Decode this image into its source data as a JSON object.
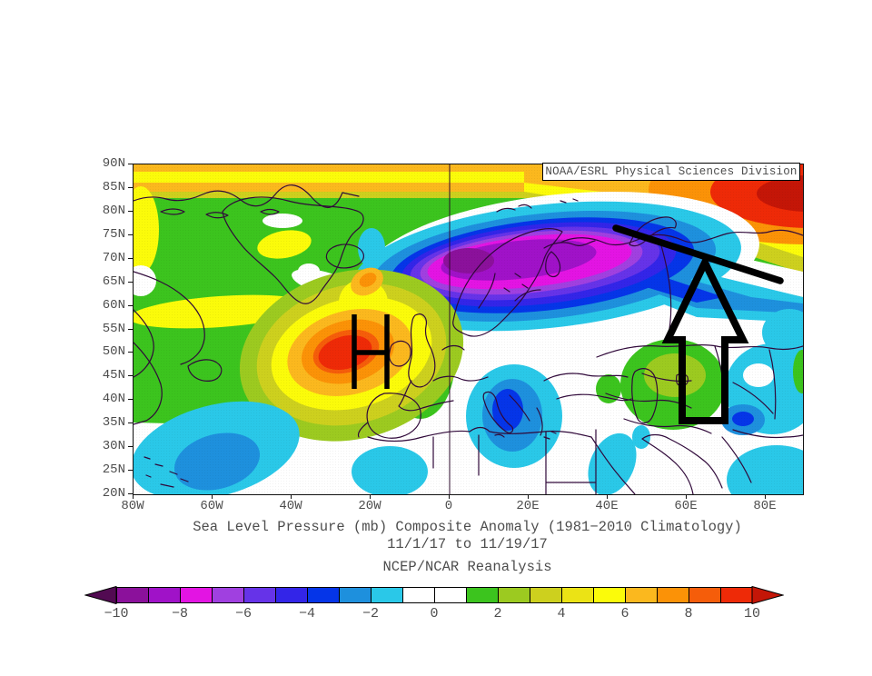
{
  "header": {
    "credit": "NOAA/ESRL Physical Sciences Division"
  },
  "titles": {
    "line1": "Sea Level Pressure (mb) Composite Anomaly (1981−2010 Climatology)",
    "line2": "11/1/17  to 11/19/17",
    "line3": "NCEP/NCAR Reanalysis"
  },
  "axes": {
    "lat_labels": [
      "90N",
      "85N",
      "80N",
      "75N",
      "70N",
      "65N",
      "60N",
      "55N",
      "50N",
      "45N",
      "40N",
      "35N",
      "30N",
      "25N",
      "20N"
    ],
    "lon_labels": [
      "80W",
      "60W",
      "40W",
      "20W",
      "0",
      "20E",
      "40E",
      "60E",
      "80E"
    ]
  },
  "colorbar": {
    "tick_labels": [
      "−10",
      "−8",
      "−6",
      "−4",
      "−2",
      "0",
      "2",
      "4",
      "6",
      "8",
      "10"
    ],
    "segment_colors": [
      "#8b119b",
      "#a012c8",
      "#e314e3",
      "#a040e0",
      "#6633e8",
      "#3325e8",
      "#0535e8",
      "#1e90dd",
      "#2ac8e8",
      "#ffffff",
      "#ffffff",
      "#3cc41e",
      "#9cca20",
      "#cdd01e",
      "#ebe315",
      "#fbfb0a",
      "#fbb81e",
      "#fb9207",
      "#f55d0a",
      "#ee2a07"
    ],
    "left_arrow_color": "#520a52",
    "right_arrow_color": "#c41607"
  },
  "annotations": {
    "high_label": "H",
    "arrow_shape": "hand-drawn upward block arrow over west Asia",
    "line_shape": "hand-drawn line along arctic coast of Eurasia"
  },
  "chart_data": {
    "type": "heatmap",
    "subtype": "filled-contour geographic map",
    "title": "Sea Level Pressure (mb) Composite Anomaly (1981−2010 Climatology)",
    "subtitle": "11/1/17  to 11/19/17",
    "dataset": "NCEP/NCAR Reanalysis",
    "credit": "NOAA/ESRL Physical Sciences Division",
    "x_ticks": [
      "80W",
      "60W",
      "40W",
      "20W",
      "0",
      "20E",
      "40E",
      "60E",
      "80E"
    ],
    "y_ticks": [
      "90N",
      "85N",
      "80N",
      "75N",
      "70N",
      "65N",
      "60N",
      "55N",
      "50N",
      "45N",
      "40N",
      "35N",
      "30N",
      "25N",
      "20N"
    ],
    "extent": {
      "lon": [
        "80W",
        "80E"
      ],
      "lat": [
        "20N",
        "90N"
      ]
    },
    "colorbar": {
      "units": "mb",
      "min": -10,
      "max": 10,
      "contour_interval": 1,
      "label_interval": 2
    },
    "features": [
      {
        "label": "H",
        "description": "positive SLP anomaly center (blocking high), NE Atlantic",
        "lon": "20W",
        "lat": "50N",
        "value_mb": 10
      },
      {
        "description": "negative SLP anomaly center over Scandinavia / Norwegian Sea",
        "lon": "15E",
        "lat": "70N",
        "value_mb": -10
      },
      {
        "description": "positive anomaly along Arctic coast of Siberia (top-right)",
        "lon": "70E",
        "lat": "83N",
        "value_mb": 10
      },
      {
        "description": "negative anomaly, central Mediterranean / Italy",
        "lon": "15E",
        "lat": "40N",
        "value_mb": -4
      },
      {
        "description": "negative anomaly, subtropical west Atlantic",
        "lon": "65W",
        "lat": "27N",
        "value_mb": -3
      },
      {
        "description": "positive anomaly, Kazakhstan",
        "lon": "62E",
        "lat": "48N",
        "value_mb": 3
      },
      {
        "description": "negative anomaly, central Asia / Pamir",
        "lon": "70E",
        "lat": "38N",
        "value_mb": -4
      },
      {
        "description": "positive anomaly band, Canadian Arctic and Greenland",
        "lon": "40W",
        "lat": "75N",
        "value_mb": 4
      }
    ]
  }
}
